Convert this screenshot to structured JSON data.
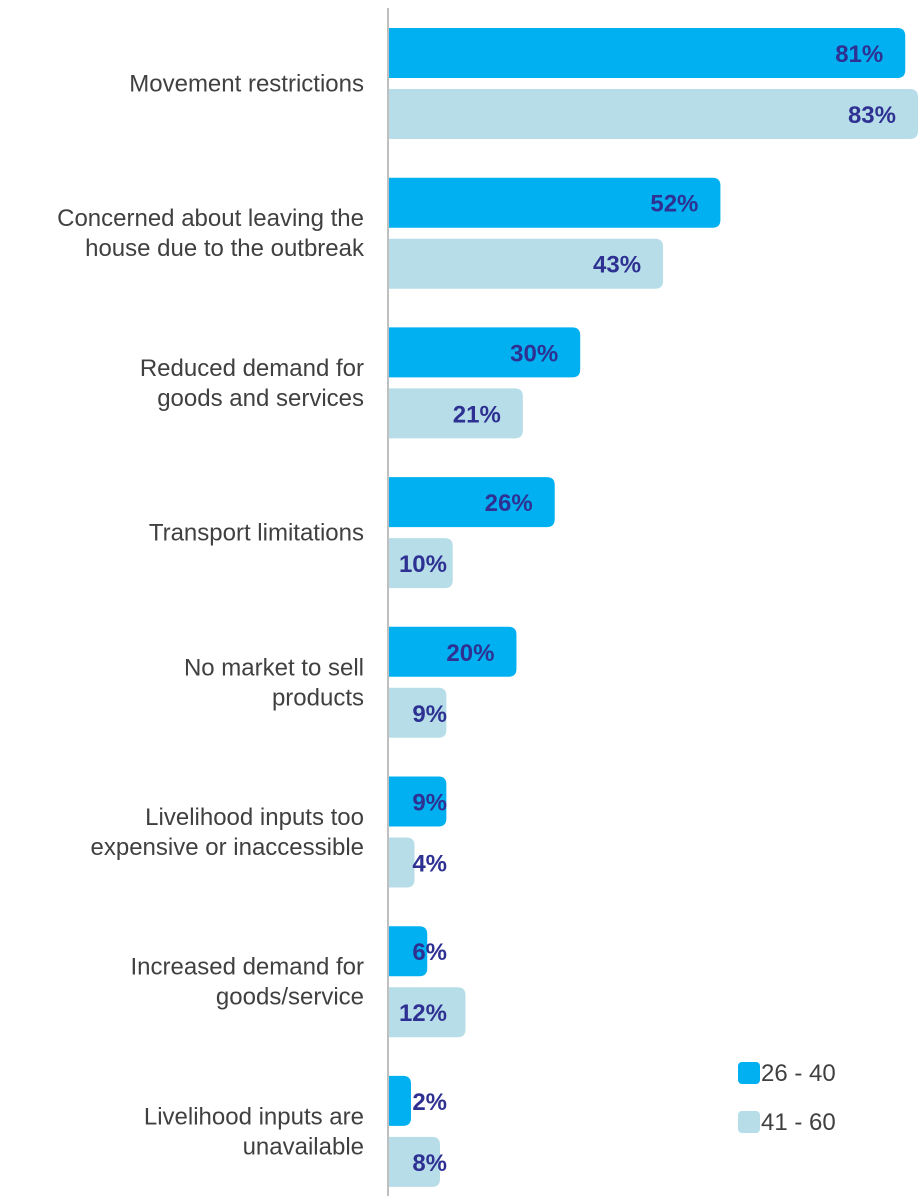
{
  "chart_data": {
    "type": "bar",
    "orientation": "horizontal",
    "categories": [
      [
        "Movement restrictions"
      ],
      [
        "Concerned about leaving the",
        "house due to the outbreak"
      ],
      [
        "Reduced demand for",
        "goods and services"
      ],
      [
        "Transport limitations"
      ],
      [
        "No market to sell",
        "products"
      ],
      [
        "Livelihood inputs too",
        "expensive  or inaccessible"
      ],
      [
        "Increased demand for",
        "goods/service"
      ],
      [
        "Livelihood inputs are",
        "unavailable"
      ]
    ],
    "series": [
      {
        "name": "26 - 40",
        "color": "#00b0f0",
        "values": [
          81,
          52,
          30,
          26,
          20,
          9,
          6,
          2
        ],
        "labels": [
          "81%",
          "52%",
          "30%",
          "26%",
          "20%",
          "9%",
          "6%",
          "2%"
        ]
      },
      {
        "name": "41 - 60",
        "color": "#b7dee8",
        "values": [
          83,
          43,
          21,
          10,
          9,
          4,
          12,
          8
        ],
        "labels": [
          "83%",
          "43%",
          "21%",
          "10%",
          "9%",
          "4%",
          "12%",
          "8%"
        ]
      }
    ],
    "xlim": [
      0,
      83
    ],
    "legend_position": "bottom-right",
    "grid": false
  }
}
